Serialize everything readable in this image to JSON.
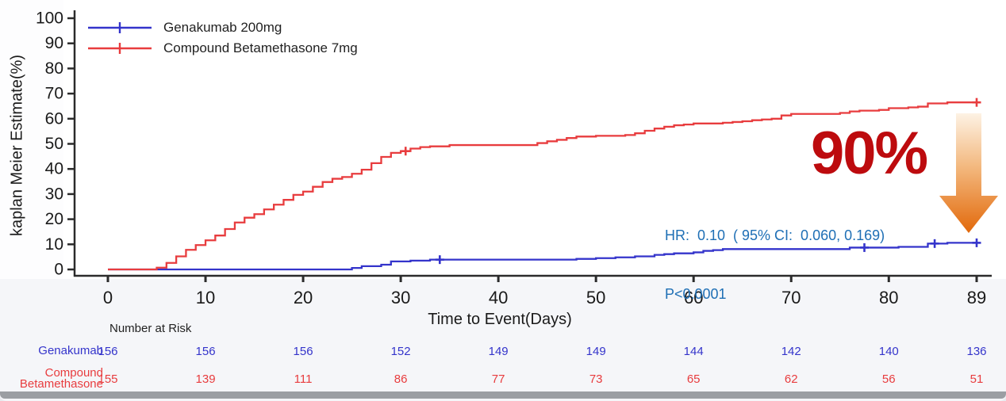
{
  "chart_data": {
    "type": "line",
    "subtype": "kaplan-meier-step",
    "title": "",
    "xlabel": "Time to Event(Days)",
    "ylabel": "kaplan Meier Estimate(%)",
    "xlim": [
      0,
      89
    ],
    "ylim": [
      0,
      100
    ],
    "xticks": [
      0,
      10,
      20,
      30,
      40,
      50,
      60,
      70,
      80,
      89
    ],
    "yticks": [
      0,
      10,
      20,
      30,
      40,
      50,
      60,
      70,
      80,
      90,
      100
    ],
    "grid": false,
    "legend_position": "top-left",
    "series": [
      {
        "name": "Genakumab 200mg",
        "color": "#3434cb",
        "steps": [
          [
            0,
            0
          ],
          [
            24,
            0
          ],
          [
            25,
            0.6
          ],
          [
            26,
            1.3
          ],
          [
            28,
            1.9
          ],
          [
            29,
            3.2
          ],
          [
            31,
            3.5
          ],
          [
            33,
            3.9
          ],
          [
            48,
            4.2
          ],
          [
            50,
            4.5
          ],
          [
            52,
            4.8
          ],
          [
            54,
            5.2
          ],
          [
            56,
            5.8
          ],
          [
            57,
            6.1
          ],
          [
            58,
            6.4
          ],
          [
            60,
            6.8
          ],
          [
            61,
            7.4
          ],
          [
            62,
            7.7
          ],
          [
            63,
            8.1
          ],
          [
            75,
            8.1
          ],
          [
            76,
            8.7
          ],
          [
            81,
            9.0
          ],
          [
            84,
            10.3
          ],
          [
            86,
            10.6
          ],
          [
            89,
            10.6
          ]
        ],
        "censor_marks": [
          [
            34,
            3.9
          ],
          [
            77.5,
            8.7
          ],
          [
            84.7,
            10.3
          ],
          [
            89,
            10.6
          ]
        ]
      },
      {
        "name": "Compound Betamethasone 7mg",
        "color": "#e83c3e",
        "steps": [
          [
            0,
            0
          ],
          [
            4,
            0
          ],
          [
            5,
            0.7
          ],
          [
            6,
            2.6
          ],
          [
            7,
            5.2
          ],
          [
            8,
            7.8
          ],
          [
            9,
            9.7
          ],
          [
            10,
            11.6
          ],
          [
            11,
            13.5
          ],
          [
            12,
            16.1
          ],
          [
            13,
            18.7
          ],
          [
            14,
            20.6
          ],
          [
            15,
            22.0
          ],
          [
            16,
            23.9
          ],
          [
            17,
            25.8
          ],
          [
            18,
            27.7
          ],
          [
            19,
            29.7
          ],
          [
            20,
            31.0
          ],
          [
            21,
            32.9
          ],
          [
            22,
            34.8
          ],
          [
            23,
            36.1
          ],
          [
            24,
            36.8
          ],
          [
            25,
            38.1
          ],
          [
            26,
            39.7
          ],
          [
            27,
            42.3
          ],
          [
            28,
            44.8
          ],
          [
            29,
            46.4
          ],
          [
            30,
            47.1
          ],
          [
            31,
            48.1
          ],
          [
            32,
            48.7
          ],
          [
            33,
            49.0
          ],
          [
            35,
            49.5
          ],
          [
            43,
            49.5
          ],
          [
            44,
            50.3
          ],
          [
            45,
            51.0
          ],
          [
            46,
            51.6
          ],
          [
            47,
            52.3
          ],
          [
            48,
            52.9
          ],
          [
            50,
            53.2
          ],
          [
            53,
            53.5
          ],
          [
            54,
            54.2
          ],
          [
            55,
            55.2
          ],
          [
            56,
            56.1
          ],
          [
            57,
            56.8
          ],
          [
            58,
            57.4
          ],
          [
            59,
            57.7
          ],
          [
            60,
            58.1
          ],
          [
            63,
            58.4
          ],
          [
            64,
            58.7
          ],
          [
            65,
            59.0
          ],
          [
            66,
            59.4
          ],
          [
            67,
            59.7
          ],
          [
            68,
            60.0
          ],
          [
            69,
            61.3
          ],
          [
            70,
            61.9
          ],
          [
            75,
            62.3
          ],
          [
            76,
            62.9
          ],
          [
            77,
            63.2
          ],
          [
            79,
            63.5
          ],
          [
            80,
            64.2
          ],
          [
            82,
            64.5
          ],
          [
            83,
            64.8
          ],
          [
            84,
            66.1
          ],
          [
            86,
            66.5
          ],
          [
            89,
            66.5
          ]
        ],
        "censor_marks": [
          [
            30.5,
            47.1
          ],
          [
            89,
            66.5
          ]
        ]
      }
    ]
  },
  "annotations": {
    "hr_line": "HR:  0.10  ( 95% CI:  0.060, 0.169)",
    "p_line": "P<0.0001",
    "effect_label": "90%",
    "colors": {
      "stats_text": "#1e6fb5",
      "effect_text": "#bd0b0e",
      "arrow_top": "#fdf2e4",
      "arrow_mid": "#f3b87e",
      "arrow_bottom": "#e2690b"
    }
  },
  "risk_table": {
    "title": "Number at Risk",
    "rows": [
      {
        "label": "Genakumab",
        "color": "#3434cb",
        "values": [
          156,
          156,
          156,
          152,
          149,
          149,
          144,
          142,
          140,
          136
        ]
      },
      {
        "label": "Compound Betamethasone",
        "color": "#e83c3e",
        "values": [
          155,
          139,
          111,
          86,
          77,
          73,
          65,
          62,
          56,
          51
        ]
      }
    ]
  },
  "axis": {
    "color": "#2b2b2b",
    "tick_label_color": "#1a1a1a"
  }
}
